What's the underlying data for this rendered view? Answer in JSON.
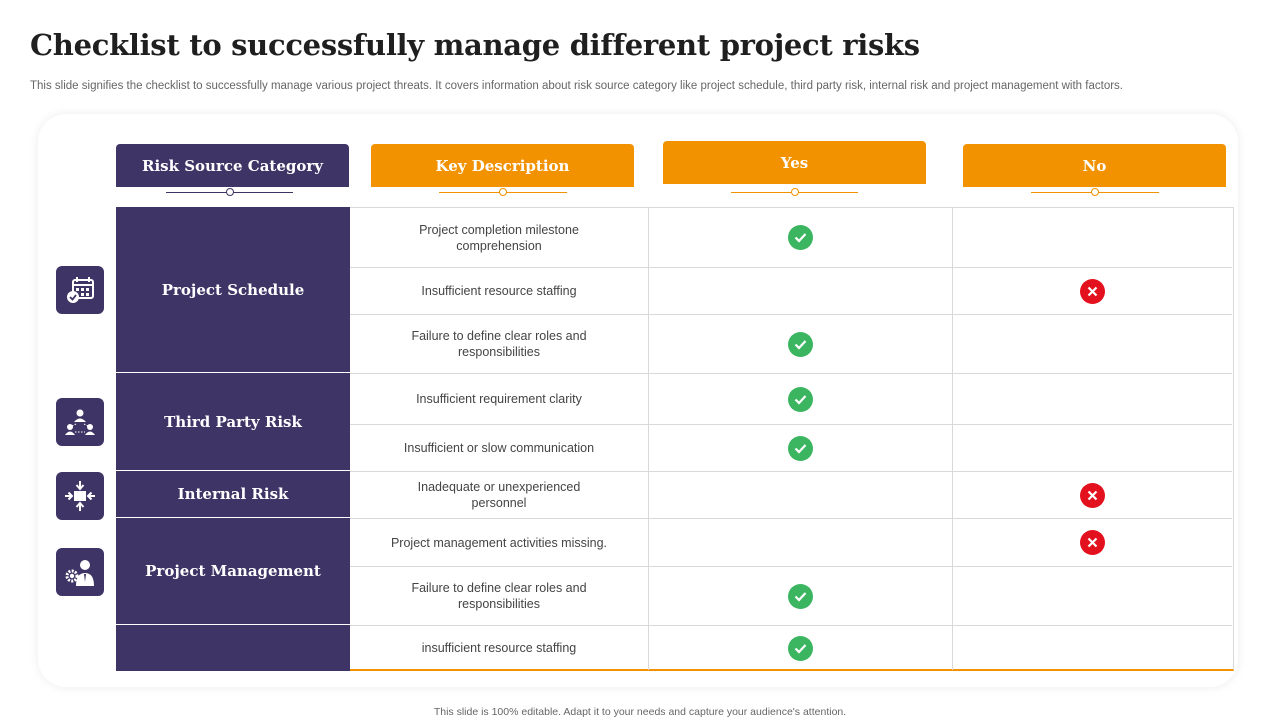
{
  "title": "Checklist to successfully manage different project risks",
  "subtitle": "This slide signifies the checklist to successfully manage various project threats. It covers information about risk source category like project schedule, third party risk, internal risk and project management with factors.",
  "headers": {
    "category": "Risk Source Category",
    "description": "Key Description",
    "yes": "Yes",
    "no": "No"
  },
  "categories": [
    {
      "label": "Project Schedule",
      "icon": "calendar-icon"
    },
    {
      "label": "Third Party Risk",
      "icon": "team-network-icon"
    },
    {
      "label": "Internal Risk",
      "icon": "compress-arrows-icon"
    },
    {
      "label": "Project Management",
      "icon": "manager-gear-icon"
    },
    {
      "label": "",
      "icon": ""
    }
  ],
  "rows": [
    {
      "description": "Project completion milestone comprehension",
      "answer": "yes"
    },
    {
      "description": "Insufficient resource staffing",
      "answer": "no"
    },
    {
      "description": "Failure to define clear roles and responsibilities",
      "answer": "yes"
    },
    {
      "description": "Insufficient requirement clarity",
      "answer": "yes"
    },
    {
      "description": "Insufficient or slow communication",
      "answer": "yes"
    },
    {
      "description": "Inadequate or unexperienced personnel",
      "answer": "no"
    },
    {
      "description": "Project management activities missing.",
      "answer": "no"
    },
    {
      "description": "Failure to define clear roles and responsibilities",
      "answer": "yes"
    },
    {
      "description": "insufficient resource staffing",
      "answer": "yes"
    }
  ],
  "colors": {
    "purple": "#3e3566",
    "orange": "#f39200",
    "check_green": "#3bb55f",
    "cross_red": "#e3101d"
  },
  "footer": "This slide is 100% editable. Adapt it to your needs and capture your audience's attention."
}
